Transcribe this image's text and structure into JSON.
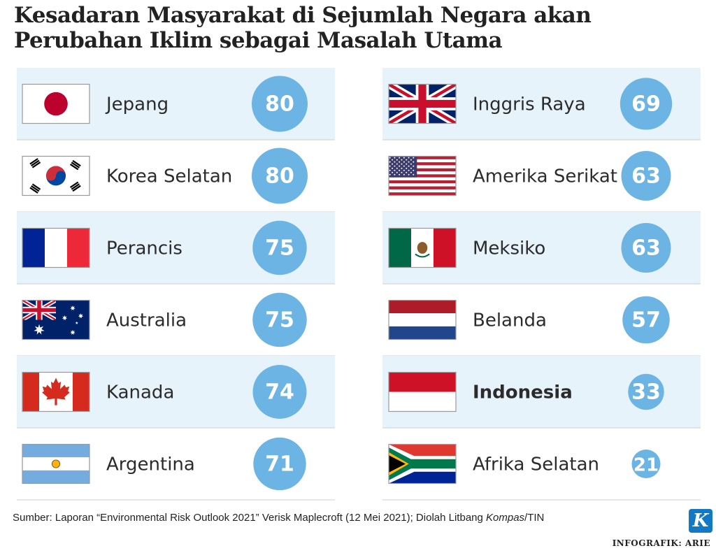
{
  "title_lines": [
    "Kesadaran Masyarakat di Sejumlah Negara akan",
    "Perubahan Iklim sebagai Masalah Utama"
  ],
  "chart_data": {
    "type": "table",
    "title": "Kesadaran Masyarakat di Sejumlah Negara akan Perubahan Iklim sebagai Masalah Utama",
    "columns": [
      {
        "rows": [
          {
            "country": "Jepang",
            "value": 80,
            "flag": "japan-flag"
          },
          {
            "country": "Korea Selatan",
            "value": 80,
            "flag": "south-korea-flag"
          },
          {
            "country": "Perancis",
            "value": 75,
            "flag": "france-flag"
          },
          {
            "country": "Australia",
            "value": 75,
            "flag": "australia-flag"
          },
          {
            "country": "Kanada",
            "value": 74,
            "flag": "canada-flag"
          },
          {
            "country": "Argentina",
            "value": 71,
            "flag": "argentina-flag"
          }
        ]
      },
      {
        "rows": [
          {
            "country": "Inggris Raya",
            "value": 69,
            "flag": "united-kingdom-flag"
          },
          {
            "country": "Amerika Serikat",
            "value": 63,
            "flag": "united-states-flag"
          },
          {
            "country": "Meksiko",
            "value": 63,
            "flag": "mexico-flag"
          },
          {
            "country": "Belanda",
            "value": 57,
            "flag": "netherlands-flag"
          },
          {
            "country": "Indonesia",
            "value": 33,
            "flag": "indonesia-flag",
            "highlight": true
          },
          {
            "country": "Afrika Selatan",
            "value": 21,
            "flag": "south-africa-flag"
          }
        ]
      }
    ],
    "colors": {
      "circle": "#6cb4e4",
      "row_tint": "#e6f3fb",
      "row_divider": "#cfcfcf"
    }
  },
  "footer": {
    "source_prefix": "Sumber: Laporan “Environmental Risk Outlook 2021” Verisk Maplecroft (12 Mei 2021); Diolah Litbang ",
    "source_italic": "Kompas",
    "source_suffix": "/TIN",
    "logo_letter": "K",
    "credit": "INFOGRAFIK: ARIE"
  }
}
